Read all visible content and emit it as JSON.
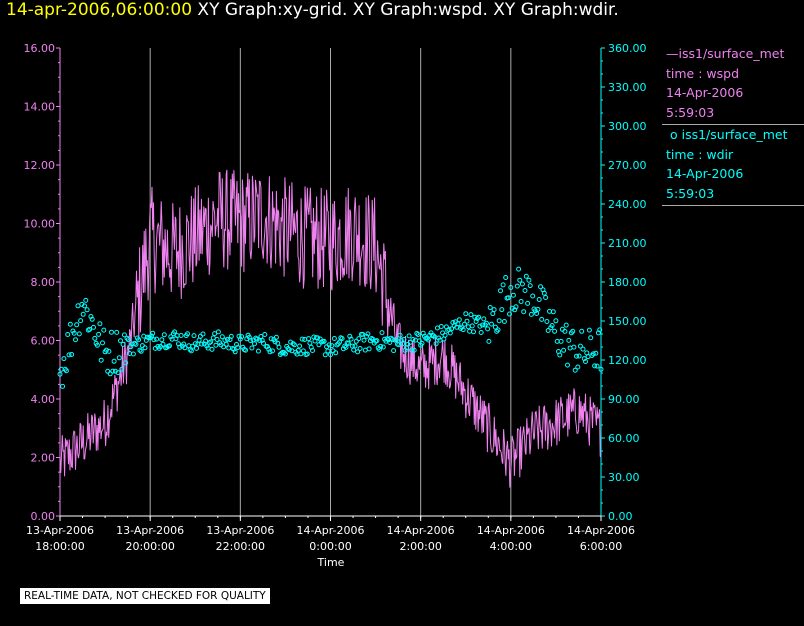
{
  "title": {
    "time": "14-apr-2006,06:00:00",
    "graphs": " XY Graph:xy-grid.  XY Graph:wspd.  XY Graph:wdir."
  },
  "legend": {
    "wspd": {
      "line1": "iss1/surface_met",
      "line2": "time : wspd",
      "line3": "14-Apr-2006",
      "line4": "5:59:03"
    },
    "wdir": {
      "line1": "iss1/surface_met",
      "line2": "time : wdir",
      "line3": "14-Apr-2006",
      "line4": "5:59:03"
    }
  },
  "note": "REAL-TIME DATA, NOT CHECKED FOR QUALITY",
  "colors": {
    "wspd": "#ee82ee",
    "wdir": "#00ffff",
    "grid": "#aaaaaa"
  },
  "chart_data": {
    "type": "line",
    "xlabel": "Time",
    "x_ticks": [
      {
        "date": "13-Apr-2006",
        "time": "18:00:00"
      },
      {
        "date": "13-Apr-2006",
        "time": "20:00:00"
      },
      {
        "date": "13-Apr-2006",
        "time": "22:00:00"
      },
      {
        "date": "14-Apr-2006",
        "time": "0:00:00"
      },
      {
        "date": "14-Apr-2006",
        "time": "2:00:00"
      },
      {
        "date": "14-Apr-2006",
        "time": "4:00:00"
      },
      {
        "date": "14-Apr-2006",
        "time": "6:00:00"
      }
    ],
    "xlim_hours": [
      18,
      30
    ],
    "y_left": {
      "series": "wspd",
      "range": [
        0,
        16
      ],
      "ticks": [
        "0.00",
        "2.00",
        "4.00",
        "6.00",
        "8.00",
        "10.00",
        "12.00",
        "14.00",
        "16.00"
      ]
    },
    "y_right": {
      "series": "wdir",
      "range": [
        0,
        360
      ],
      "ticks": [
        "0.00",
        "30.00",
        "60.00",
        "90.00",
        "120.00",
        "150.00",
        "180.00",
        "210.00",
        "240.00",
        "270.00",
        "300.00",
        "330.00",
        "360.00"
      ]
    },
    "grid": "vertical",
    "legend_position": "right",
    "series": [
      {
        "name": "wspd",
        "axis": "left",
        "style": "line",
        "time_hours": [
          18.0,
          18.5,
          19.0,
          19.5,
          20.0,
          20.5,
          21.0,
          21.5,
          22.0,
          22.5,
          23.0,
          23.5,
          24.0,
          24.5,
          25.0,
          25.5,
          26.0,
          26.5,
          27.0,
          27.5,
          28.0,
          28.5,
          29.0,
          29.5,
          30.0
        ],
        "values": [
          1.8,
          2.5,
          3.2,
          5.5,
          9.5,
          9.0,
          9.5,
          10.2,
          10.0,
          10.3,
          9.8,
          9.5,
          9.4,
          9.8,
          9.2,
          5.8,
          5.0,
          5.5,
          4.2,
          3.0,
          1.8,
          2.8,
          3.2,
          3.6,
          2.9
        ]
      },
      {
        "name": "wdir",
        "axis": "right",
        "style": "markers",
        "time_hours": [
          18.0,
          18.5,
          19.0,
          19.5,
          20.0,
          20.5,
          21.0,
          21.5,
          22.0,
          22.5,
          23.0,
          23.5,
          24.0,
          24.5,
          25.0,
          25.5,
          26.0,
          26.5,
          27.0,
          27.5,
          28.0,
          28.5,
          29.0,
          29.5,
          30.0
        ],
        "values": [
          110,
          165,
          125,
          130,
          135,
          137,
          133,
          135,
          132,
          134,
          130,
          131,
          130,
          132,
          135,
          133,
          135,
          140,
          150,
          145,
          175,
          170,
          140,
          125,
          128
        ]
      }
    ]
  }
}
